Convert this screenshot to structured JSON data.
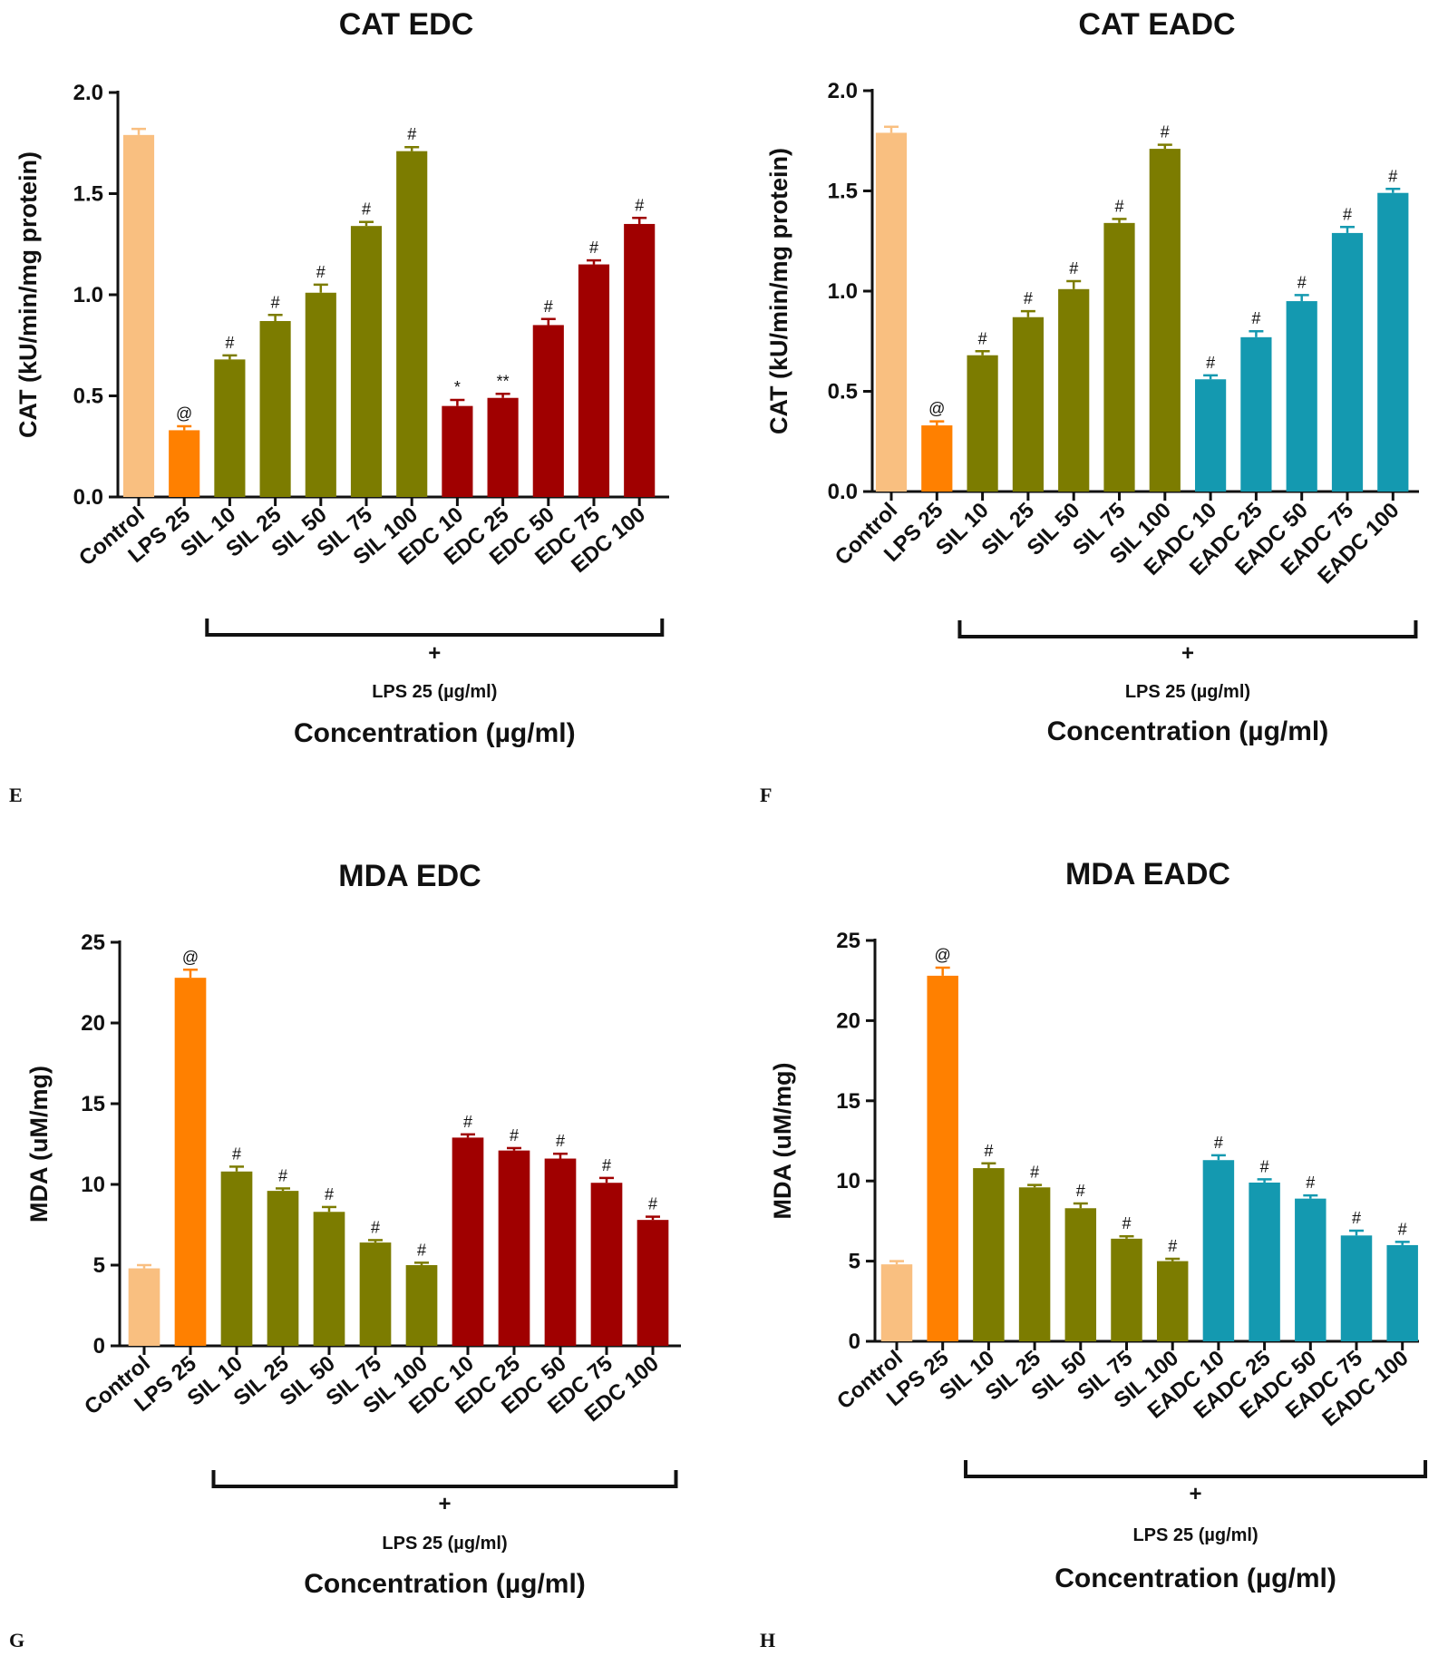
{
  "colors": {
    "control": "#F9BF80",
    "lps": "#FF8000",
    "sil": "#7C7C00",
    "edc": "#A00000",
    "eadc": "#1499B0",
    "axis": "#111111"
  },
  "chart_data": [
    {
      "panel": "E",
      "type": "bar",
      "title": "CAT EDC",
      "ylabel": "CAT (kU/min/mg protein)",
      "xlabel": "Concentration (µg/ml)",
      "ylim": [
        0,
        2.0
      ],
      "yticks": [
        "0.0",
        "0.5",
        "1.0",
        "1.5",
        "2.0"
      ],
      "bracket_plus": "+",
      "bracket_label": "LPS 25 (µg/ml)",
      "bracket_range": [
        2,
        11
      ],
      "categories": [
        "Control",
        "LPS 25",
        "SIL 10",
        "SIL 25",
        "SIL 50",
        "SIL 75",
        "SIL 100",
        "EDC 10",
        "EDC 25",
        "EDC 50",
        "EDC 75",
        "EDC 100"
      ],
      "values": [
        1.79,
        0.33,
        0.68,
        0.87,
        1.01,
        1.34,
        1.71,
        0.45,
        0.49,
        0.85,
        1.15,
        1.35
      ],
      "errors": [
        0.03,
        0.02,
        0.02,
        0.03,
        0.04,
        0.02,
        0.02,
        0.03,
        0.02,
        0.03,
        0.02,
        0.03
      ],
      "groups": [
        "control",
        "lps",
        "sil",
        "sil",
        "sil",
        "sil",
        "sil",
        "edc",
        "edc",
        "edc",
        "edc",
        "edc"
      ],
      "annotations": [
        "",
        "@",
        "#",
        "#",
        "#",
        "#",
        "#",
        "*",
        "**",
        "#",
        "#",
        "#"
      ]
    },
    {
      "panel": "F",
      "type": "bar",
      "title": "CAT EADC",
      "ylabel": "CAT (kU/min/mg protein)",
      "xlabel": "Concentration (µg/ml)",
      "ylim": [
        0,
        2.0
      ],
      "yticks": [
        "0.0",
        "0.5",
        "1.0",
        "1.5",
        "2.0"
      ],
      "bracket_plus": "+",
      "bracket_label": "LPS 25 (µg/ml)",
      "bracket_range": [
        2,
        11
      ],
      "categories": [
        "Control",
        "LPS 25",
        "SIL 10",
        "SIL 25",
        "SIL 50",
        "SIL 75",
        "SIL 100",
        "EADC 10",
        "EADC 25",
        "EADC 50",
        "EADC 75",
        "EADC 100"
      ],
      "values": [
        1.79,
        0.33,
        0.68,
        0.87,
        1.01,
        1.34,
        1.71,
        0.56,
        0.77,
        0.95,
        1.29,
        1.49
      ],
      "errors": [
        0.03,
        0.02,
        0.02,
        0.03,
        0.04,
        0.02,
        0.02,
        0.02,
        0.03,
        0.03,
        0.03,
        0.02
      ],
      "groups": [
        "control",
        "lps",
        "sil",
        "sil",
        "sil",
        "sil",
        "sil",
        "eadc",
        "eadc",
        "eadc",
        "eadc",
        "eadc"
      ],
      "annotations": [
        "",
        "@",
        "#",
        "#",
        "#",
        "#",
        "#",
        "#",
        "#",
        "#",
        "#",
        "#"
      ]
    },
    {
      "panel": "G",
      "type": "bar",
      "title": "MDA EDC",
      "ylabel": "MDA (uM/mg)",
      "xlabel": "Concentration (µg/ml)",
      "ylim": [
        0,
        25
      ],
      "yticks": [
        "0",
        "5",
        "10",
        "15",
        "20",
        "25"
      ],
      "bracket_plus": "+",
      "bracket_label": "LPS 25 (µg/ml)",
      "bracket_range": [
        2,
        11
      ],
      "categories": [
        "Control",
        "LPS 25",
        "SIL 10",
        "SIL 25",
        "SIL 50",
        "SIL 75",
        "SIL 100",
        "EDC 10",
        "EDC 25",
        "EDC 50",
        "EDC 75",
        "EDC 100"
      ],
      "values": [
        4.8,
        22.8,
        10.8,
        9.6,
        8.3,
        6.4,
        5.0,
        12.9,
        12.1,
        11.6,
        10.1,
        7.8
      ],
      "errors": [
        0.2,
        0.5,
        0.3,
        0.15,
        0.3,
        0.15,
        0.15,
        0.2,
        0.15,
        0.3,
        0.3,
        0.2
      ],
      "groups": [
        "control",
        "lps",
        "sil",
        "sil",
        "sil",
        "sil",
        "sil",
        "edc",
        "edc",
        "edc",
        "edc",
        "edc"
      ],
      "annotations": [
        "",
        "@",
        "#",
        "#",
        "#",
        "#",
        "#",
        "#",
        "#",
        "#",
        "#",
        "#"
      ]
    },
    {
      "panel": "H",
      "type": "bar",
      "title": "MDA EADC",
      "ylabel": "MDA (uM/mg)",
      "xlabel": "Concentration (µg/ml)",
      "ylim": [
        0,
        25
      ],
      "yticks": [
        "0",
        "5",
        "10",
        "15",
        "20",
        "25"
      ],
      "bracket_plus": "+",
      "bracket_label": "LPS 25 (µg/ml)",
      "bracket_range": [
        2,
        11
      ],
      "categories": [
        "Control",
        "LPS 25",
        "SIL 10",
        "SIL 25",
        "SIL 50",
        "SIL 75",
        "SIL 100",
        "EADC 10",
        "EADC 25",
        "EADC 50",
        "EADC 75",
        "EADC 100"
      ],
      "values": [
        4.8,
        22.8,
        10.8,
        9.6,
        8.3,
        6.4,
        5.0,
        11.3,
        9.9,
        8.9,
        6.6,
        6.0
      ],
      "errors": [
        0.2,
        0.5,
        0.3,
        0.15,
        0.3,
        0.15,
        0.15,
        0.3,
        0.2,
        0.2,
        0.3,
        0.2
      ],
      "groups": [
        "control",
        "lps",
        "sil",
        "sil",
        "sil",
        "sil",
        "sil",
        "eadc",
        "eadc",
        "eadc",
        "eadc",
        "eadc"
      ],
      "annotations": [
        "",
        "@",
        "#",
        "#",
        "#",
        "#",
        "#",
        "#",
        "#",
        "#",
        "#",
        "#"
      ]
    }
  ]
}
